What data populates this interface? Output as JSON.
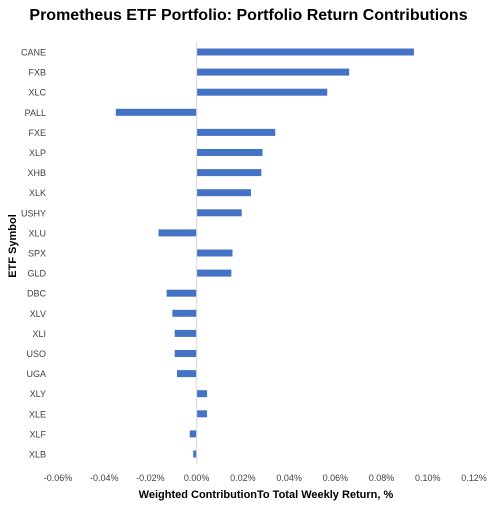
{
  "chart_data": {
    "type": "bar",
    "orientation": "horizontal",
    "title": "Prometheus ETF Portfolio: Portfolio Return Contributions",
    "xlabel": "Weighted ContributionTo Total Weekly Return, %",
    "ylabel": "ETF Symbol",
    "xlim": [
      -0.06,
      0.12
    ],
    "xticks": [
      -0.06,
      -0.04,
      -0.02,
      0.0,
      0.02,
      0.04,
      0.06,
      0.08,
      0.1,
      0.12
    ],
    "xtick_labels": [
      "-0.06%",
      "-0.04%",
      "-0.02%",
      "0.00%",
      "0.02%",
      "0.04%",
      "0.06%",
      "0.08%",
      "0.10%",
      "0.12%"
    ],
    "categories": [
      "CANE",
      "FXB",
      "XLC",
      "PALL",
      "FXE",
      "XLP",
      "XHB",
      "XLK",
      "USHY",
      "XLU",
      "SPX",
      "GLD",
      "DBC",
      "XLV",
      "XLI",
      "USO",
      "UGA",
      "XLY",
      "XLE",
      "XLF",
      "XLB"
    ],
    "values": [
      0.094,
      0.066,
      0.0565,
      -0.035,
      0.034,
      0.0285,
      0.028,
      0.0235,
      0.0195,
      -0.0165,
      0.0155,
      0.015,
      -0.013,
      -0.0105,
      -0.0095,
      -0.0095,
      -0.0085,
      0.0045,
      0.0045,
      -0.003,
      -0.0015
    ],
    "grid": false,
    "legend": "none",
    "bar_color": "#4472C4"
  }
}
